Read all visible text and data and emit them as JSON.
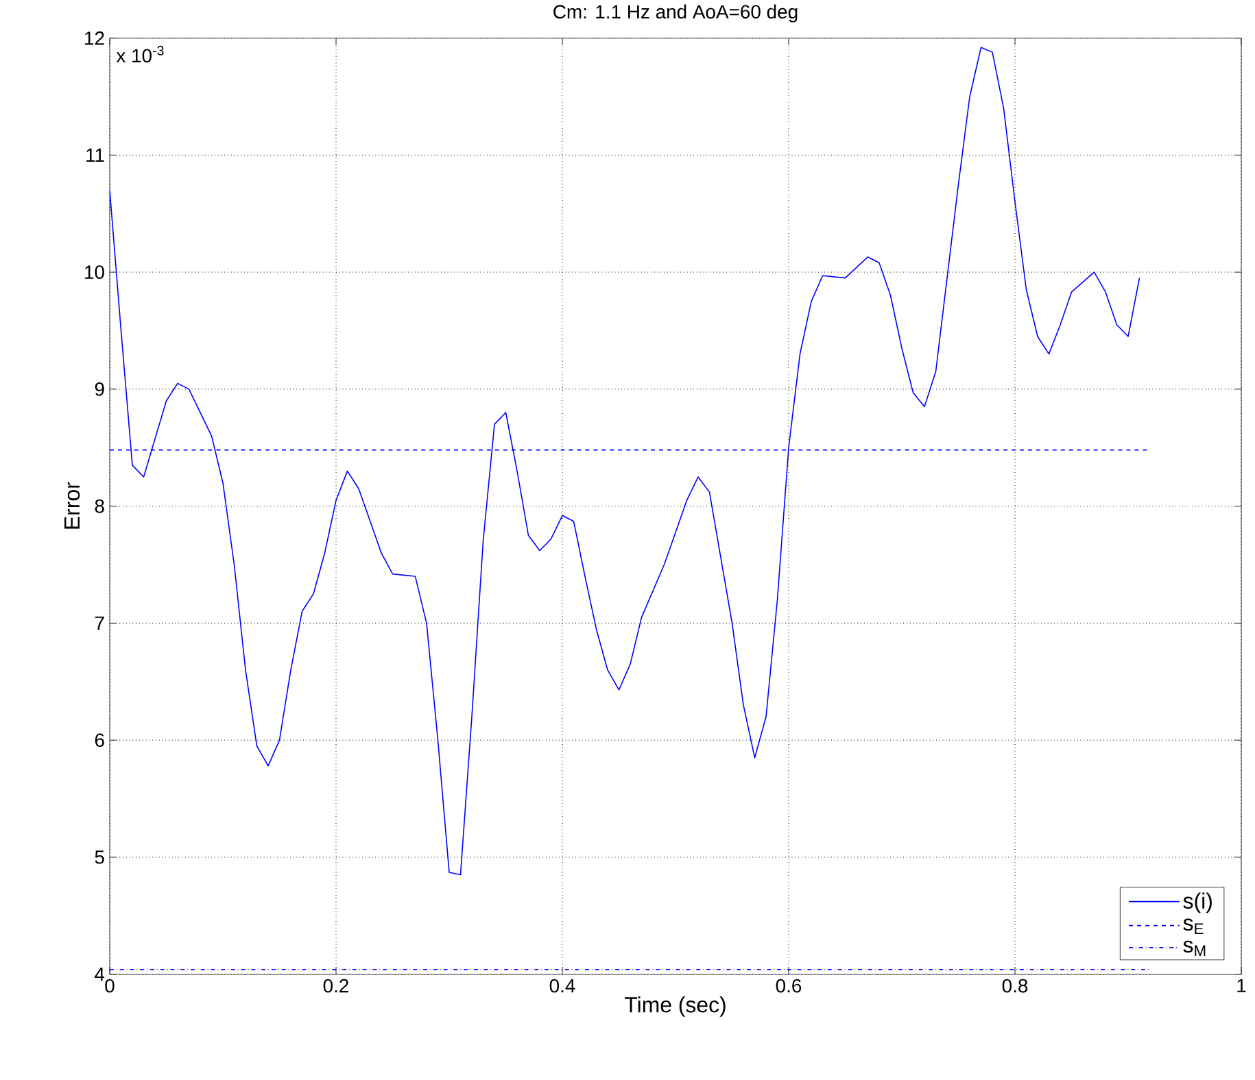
{
  "chart_data": {
    "type": "line",
    "title": "Cm: 1.1 Hz and AoA=60 deg",
    "xlabel": "Time (sec)",
    "ylabel": "Error",
    "annotations": [
      "x 10$^{-3}$"
    ],
    "xlim": [
      0,
      1
    ],
    "ylim": [
      4,
      12
    ],
    "xticks": [
      0,
      0.2,
      0.4,
      0.6,
      0.8,
      1
    ],
    "yticks": [
      4,
      5,
      6,
      7,
      8,
      9,
      10,
      11,
      12
    ],
    "grid": true,
    "legend": "bottom right",
    "series": [
      {
        "name": "s(i)",
        "color": "#0000ff",
        "line_style": "solid",
        "x": [
          0,
          0.01,
          0.02,
          0.03,
          0.05,
          0.06,
          0.07,
          0.09,
          0.1,
          0.11,
          0.12,
          0.13,
          0.14,
          0.15,
          0.16,
          0.17,
          0.18,
          0.19,
          0.2,
          0.21,
          0.22,
          0.24,
          0.25,
          0.27,
          0.28,
          0.29,
          0.3,
          0.31,
          0.32,
          0.33,
          0.34,
          0.35,
          0.36,
          0.37,
          0.38,
          0.39,
          0.4,
          0.41,
          0.42,
          0.43,
          0.44,
          0.45,
          0.46,
          0.47,
          0.49,
          0.51,
          0.52,
          0.53,
          0.55,
          0.56,
          0.57,
          0.58,
          0.59,
          0.6,
          0.61,
          0.62,
          0.63,
          0.65,
          0.67,
          0.68,
          0.69,
          0.7,
          0.71,
          0.72,
          0.73,
          0.74,
          0.75,
          0.76,
          0.77,
          0.78,
          0.79,
          0.8,
          0.81,
          0.82,
          0.83,
          0.84,
          0.85,
          0.87,
          0.88,
          0.89,
          0.9,
          0.91
        ],
        "values": [
          10.7,
          9.5,
          8.35,
          8.25,
          8.9,
          9.05,
          9.0,
          8.6,
          8.2,
          7.5,
          6.6,
          5.95,
          5.78,
          6.0,
          6.6,
          7.1,
          7.25,
          7.6,
          8.05,
          8.3,
          8.15,
          7.6,
          7.42,
          7.4,
          7.0,
          6.0,
          4.87,
          4.85,
          6.2,
          7.7,
          8.7,
          8.8,
          8.3,
          7.75,
          7.62,
          7.72,
          7.92,
          7.87,
          7.4,
          6.95,
          6.6,
          6.43,
          6.65,
          7.05,
          7.5,
          8.05,
          8.25,
          8.12,
          7.0,
          6.3,
          5.85,
          6.2,
          7.2,
          8.5,
          9.3,
          9.75,
          9.97,
          9.95,
          10.13,
          10.08,
          9.8,
          9.35,
          8.97,
          8.85,
          9.15,
          9.95,
          10.75,
          11.5,
          11.92,
          11.88,
          11.4,
          10.6,
          9.85,
          9.45,
          9.3,
          9.55,
          9.83,
          10.0,
          9.83,
          9.55,
          9.45,
          9.95
        ]
      },
      {
        "name": "s$_{E}$",
        "color": "#0000ff",
        "line_style": "dashed",
        "x": [
          0,
          0.92
        ],
        "values": [
          8.48,
          8.48
        ]
      },
      {
        "name": "s$_{M}$",
        "color": "#0000ff",
        "line_style": "dashdot",
        "x": [
          0,
          0.92
        ],
        "values": [
          4.04,
          4.04
        ]
      }
    ]
  }
}
